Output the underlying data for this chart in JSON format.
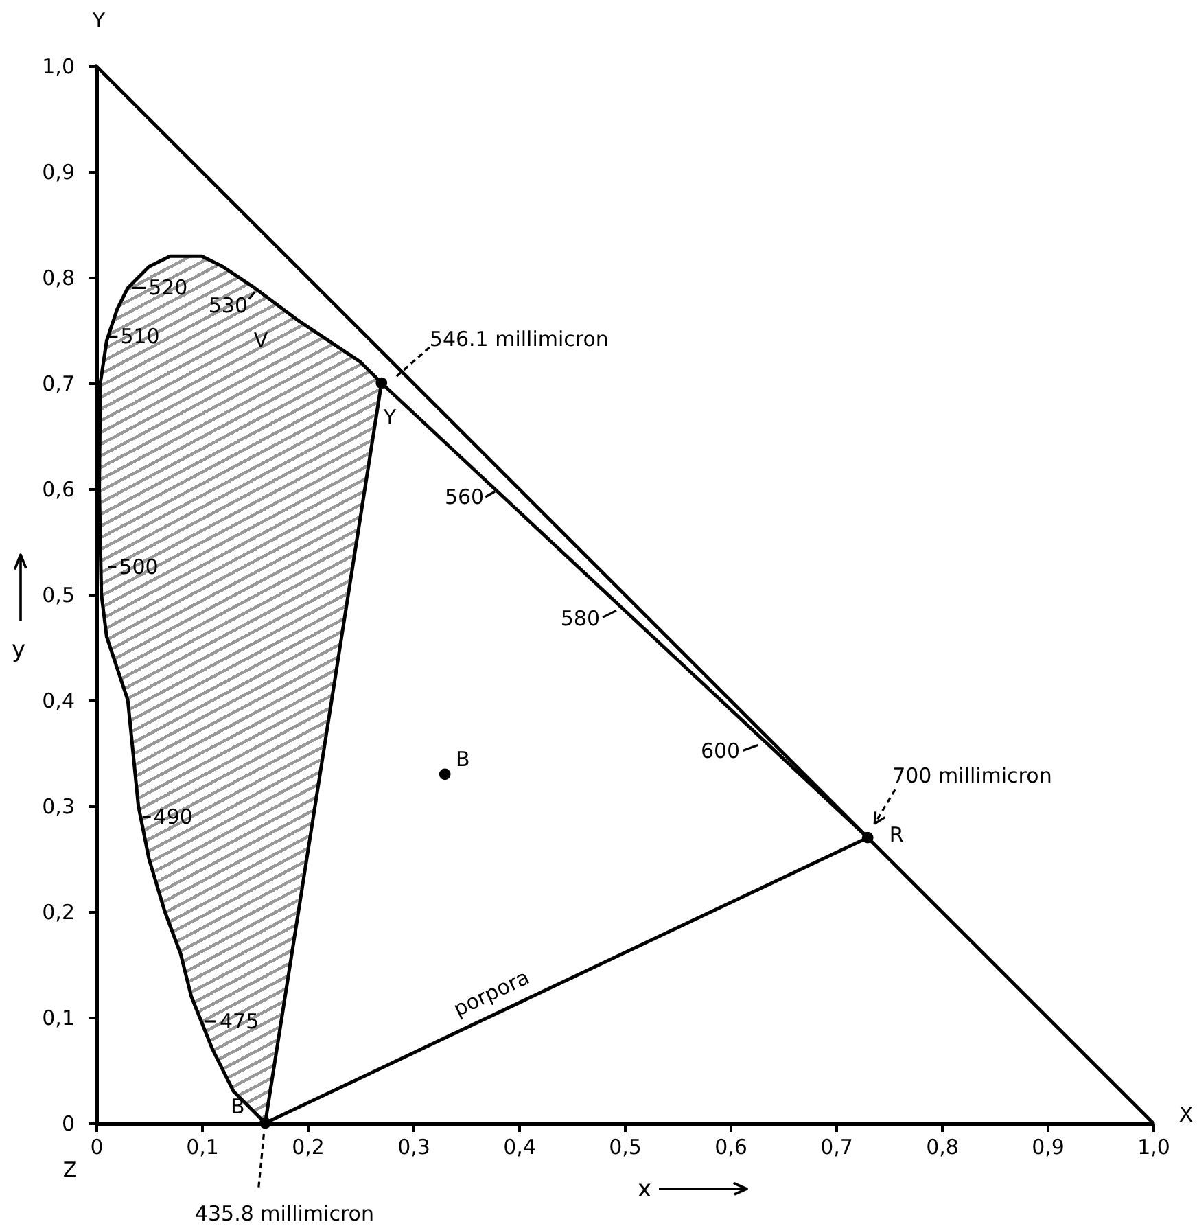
{
  "chart_data": {
    "type": "line",
    "xlabel": "x",
    "ylabel": "y",
    "xlim": [
      0,
      1
    ],
    "ylim": [
      0,
      1
    ],
    "xticks": [
      0,
      {
        "value": 0.1,
        "label": "0,1"
      },
      {
        "value": 0.2,
        "label": "0,2"
      },
      {
        "value": 0.3,
        "label": "0,3"
      },
      {
        "value": 0.4,
        "label": "0,4"
      },
      {
        "value": 0.5,
        "label": "0,5"
      },
      {
        "value": 0.6,
        "label": "0,6"
      },
      {
        "value": 0.7,
        "label": "0,7"
      },
      {
        "value": 0.8,
        "label": "0,8"
      },
      {
        "value": 0.9,
        "label": "0,9"
      },
      {
        "value": 1,
        "label": "1,0"
      }
    ],
    "yticks": [
      0,
      {
        "value": 0.1,
        "label": "0,1"
      },
      {
        "value": 0.2,
        "label": "0,2"
      },
      {
        "value": 0.3,
        "label": "0,3"
      },
      {
        "value": 0.4,
        "label": "0,4"
      },
      {
        "value": 0.5,
        "label": "0,5"
      },
      {
        "value": 0.6,
        "label": "0,6"
      },
      {
        "value": 0.7,
        "label": "0,7"
      },
      {
        "value": 0.8,
        "label": "0,8"
      },
      {
        "value": 0.9,
        "label": "0,9"
      },
      {
        "value": 1,
        "label": "1,0"
      }
    ],
    "series": [
      {
        "type": "area",
        "color": "#000000",
        "x": [
          0.16,
          0.13,
          0.11,
          0.09,
          0.08,
          0.065,
          0.05,
          0.04,
          0.03,
          0.01,
          0.005,
          0.003,
          0.004,
          0.01,
          0.02,
          0.03,
          0.05,
          0.07,
          0.1,
          0.12,
          0.15,
          0.19,
          0.22,
          0.25,
          0.27,
          0.16
        ],
        "values": [
          0,
          0.03,
          0.07,
          0.12,
          0.16,
          0.2,
          0.25,
          0.3,
          0.4,
          0.46,
          0.5,
          0.6,
          0.7,
          0.74,
          0.77,
          0.79,
          0.81,
          0.82,
          0.82,
          0.81,
          0.79,
          0.76,
          0.74,
          0.72,
          0.7,
          0
        ]
      },
      {
        "color": "#000000",
        "x": [
          0.27,
          0.73
        ],
        "values": [
          0.7,
          0.27
        ]
      },
      {
        "color": "#000000",
        "x": [
          0,
          1
        ],
        "values": [
          1,
          0
        ]
      },
      {
        "name": "porpora",
        "color": "#000000",
        "x": [
          0.16,
          0.73
        ],
        "values": [
          0,
          0.27
        ]
      },
      {
        "type": "scatter",
        "marker": "circle",
        "color": "#000000",
        "x": [
          0.27,
          0.73,
          0.16,
          0.33
        ],
        "values": [
          0.7,
          0.27,
          0,
          0.33
        ]
      }
    ],
    "annotations": [
      {
        "text": "475",
        "x": 0.1,
        "y": 0.1
      },
      {
        "text": "490",
        "x": 0.04,
        "y": 0.3
      },
      {
        "text": "500",
        "x": 0.01,
        "y": 0.53
      },
      {
        "text": "510",
        "x": 0.01,
        "y": 0.74
      },
      {
        "text": "520",
        "x": 0.03,
        "y": 0.79
      },
      {
        "text": "530",
        "x": 0.15,
        "y": 0.79
      },
      {
        "text": "560",
        "x": 0.38,
        "y": 0.6
      },
      {
        "text": "580",
        "x": 0.5,
        "y": 0.49
      },
      {
        "text": "600",
        "x": 0.63,
        "y": 0.36
      },
      {
        "text": "546.1 millimicron",
        "x": 0.27,
        "y": 0.7
      },
      {
        "text": "700 millimicron",
        "x": 0.73,
        "y": 0.27
      },
      {
        "text": "435.8 millimicron",
        "x": 0.16,
        "y": 0
      },
      {
        "text": "Y",
        "x": 0.27,
        "y": 0.7
      },
      {
        "text": "R",
        "x": 0.73,
        "y": 0.27
      },
      {
        "text": "B",
        "x": 0.16,
        "y": 0
      },
      {
        "text": "B",
        "x": 0.33,
        "y": 0.33
      },
      "V",
      {
        "text": "Y",
        "x": 0,
        "y": 1
      },
      {
        "text": "X",
        "x": 1,
        "y": 0
      },
      "Z"
    ]
  }
}
